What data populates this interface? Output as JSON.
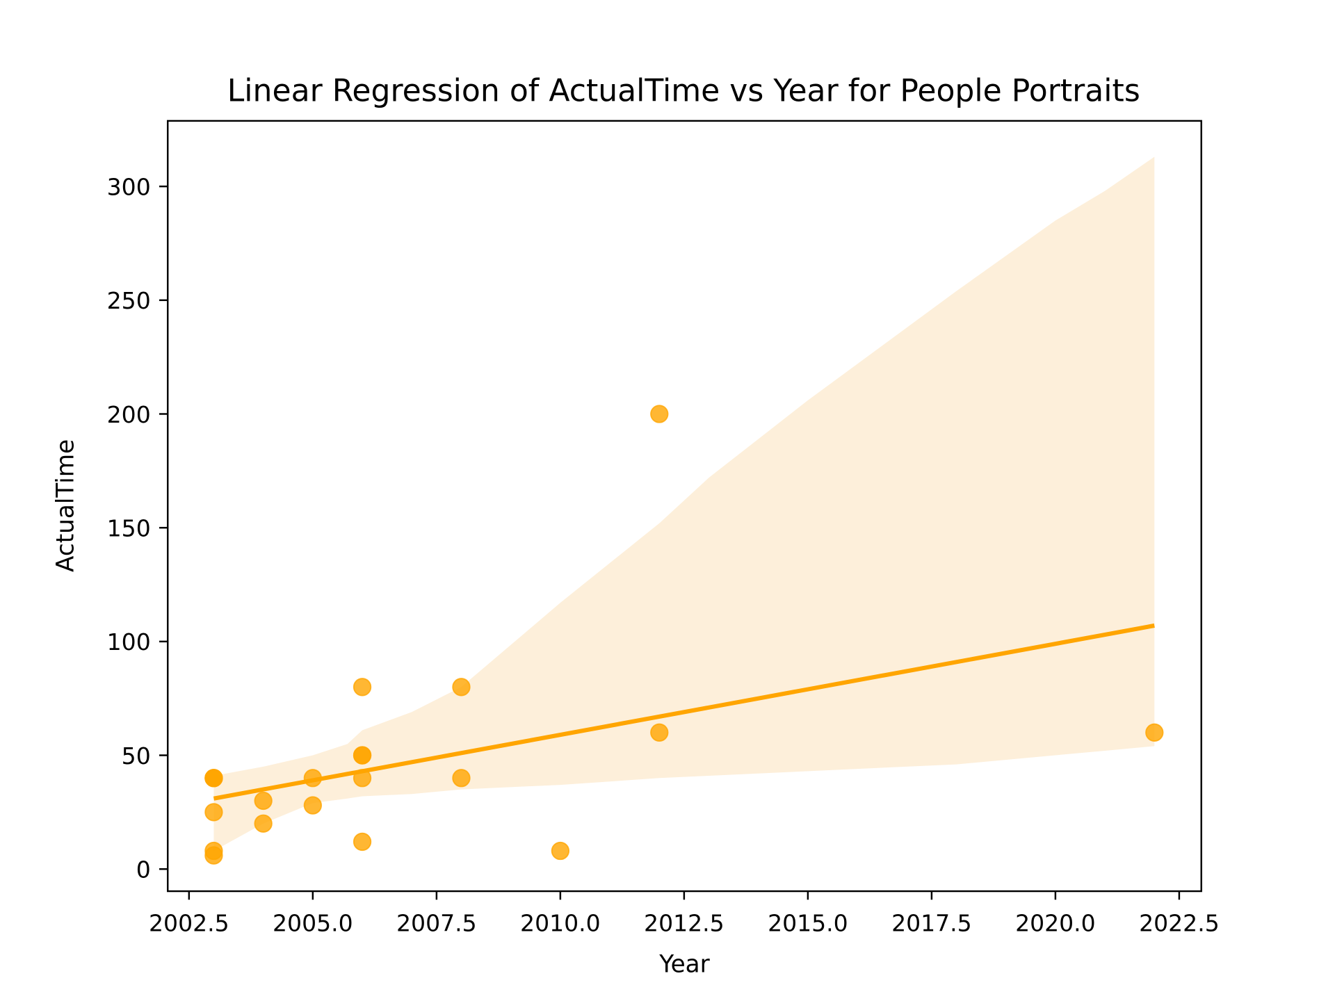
{
  "chart_data": {
    "type": "scatter",
    "title": "Linear Regression of ActualTime vs Year for People Portraits",
    "xlabel": "Year",
    "ylabel": "ActualTime",
    "xlim": [
      2002.05,
      2022.95
    ],
    "ylim": [
      -9.5,
      328.5
    ],
    "grid": false,
    "legend": null,
    "x_ticks": [
      "2002.5",
      "2005.0",
      "2007.5",
      "2010.0",
      "2012.5",
      "2015.0",
      "2017.5",
      "2020.0",
      "2022.5"
    ],
    "y_ticks": [
      "0",
      "50",
      "100",
      "150",
      "200",
      "250",
      "300"
    ],
    "points": [
      {
        "x": 2003,
        "y": 40
      },
      {
        "x": 2003,
        "y": 40
      },
      {
        "x": 2003,
        "y": 40
      },
      {
        "x": 2003,
        "y": 25
      },
      {
        "x": 2003,
        "y": 8
      },
      {
        "x": 2003,
        "y": 6
      },
      {
        "x": 2004,
        "y": 30
      },
      {
        "x": 2004,
        "y": 20
      },
      {
        "x": 2005,
        "y": 40
      },
      {
        "x": 2005,
        "y": 28
      },
      {
        "x": 2006,
        "y": 80
      },
      {
        "x": 2006,
        "y": 50
      },
      {
        "x": 2006,
        "y": 50
      },
      {
        "x": 2006,
        "y": 40
      },
      {
        "x": 2006,
        "y": 12
      },
      {
        "x": 2008,
        "y": 80
      },
      {
        "x": 2008,
        "y": 40
      },
      {
        "x": 2010,
        "y": 8
      },
      {
        "x": 2012,
        "y": 200
      },
      {
        "x": 2012,
        "y": 60
      },
      {
        "x": 2022,
        "y": 60
      }
    ],
    "regression_line": {
      "x": [
        2003,
        2022
      ],
      "y": [
        31,
        107
      ]
    },
    "confidence_band": {
      "x": [
        2003,
        2004,
        2005,
        2005.7,
        2006,
        2007,
        2008,
        2010,
        2012,
        2013,
        2015,
        2018,
        2020,
        2021,
        2022
      ],
      "upper": [
        41,
        45,
        50,
        55,
        61,
        69,
        80,
        117,
        152,
        172,
        206,
        254,
        285,
        298,
        313
      ],
      "lower": [
        8,
        20,
        29,
        31,
        32,
        33,
        35,
        37,
        40,
        41,
        43,
        46,
        50,
        52,
        54
      ]
    },
    "colors": {
      "marker": "#FFA500",
      "line": "#FFA500",
      "band": "#FDEFDA"
    }
  }
}
